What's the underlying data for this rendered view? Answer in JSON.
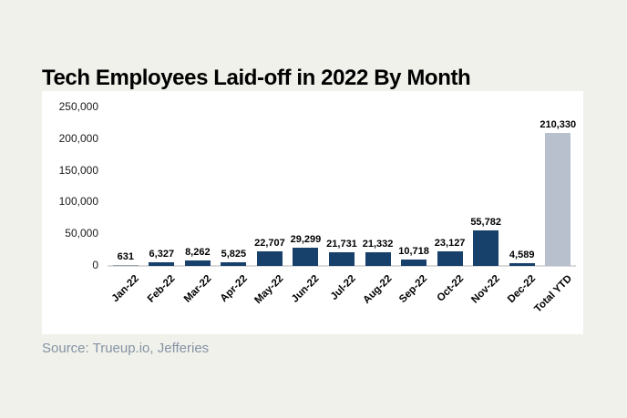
{
  "page": {
    "background": "#f0f1ea",
    "panel_background": "#ffffff"
  },
  "title": "Tech Employees Laid-off in 2022 By Month",
  "source": "Source: Trueup.io, Jefferies",
  "chart_data": {
    "type": "bar",
    "title": "Tech Employees Laid-off in 2022 By Month",
    "categories": [
      "Jan-22",
      "Feb-22",
      "Mar-22",
      "Apr-22",
      "May-22",
      "Jun-22",
      "Jul-22",
      "Aug-22",
      "Sep-22",
      "Oct-22",
      "Nov-22",
      "Dec-22",
      "Total YTD"
    ],
    "values": [
      631,
      6327,
      8262,
      5825,
      22707,
      29299,
      21731,
      21332,
      10718,
      23127,
      55782,
      4589,
      210330
    ],
    "data_labels": [
      "631",
      "6,327",
      "8,262",
      "5,825",
      "22,707",
      "29,299",
      "21,731",
      "21,332",
      "10,718",
      "23,127",
      "55,782",
      "4,589",
      "210,330"
    ],
    "y_ticks": [
      "250,000",
      "200,000",
      "150,000",
      "100,000",
      "50,000",
      "0"
    ],
    "ylim": [
      0,
      250000
    ],
    "xlabel": "",
    "ylabel": "",
    "grid": false,
    "legend": "none",
    "bar_color": "#17406b",
    "highlight_index": 12,
    "highlight_color": "#b7c0cc",
    "source": "Source: Trueup.io, Jefferies"
  }
}
